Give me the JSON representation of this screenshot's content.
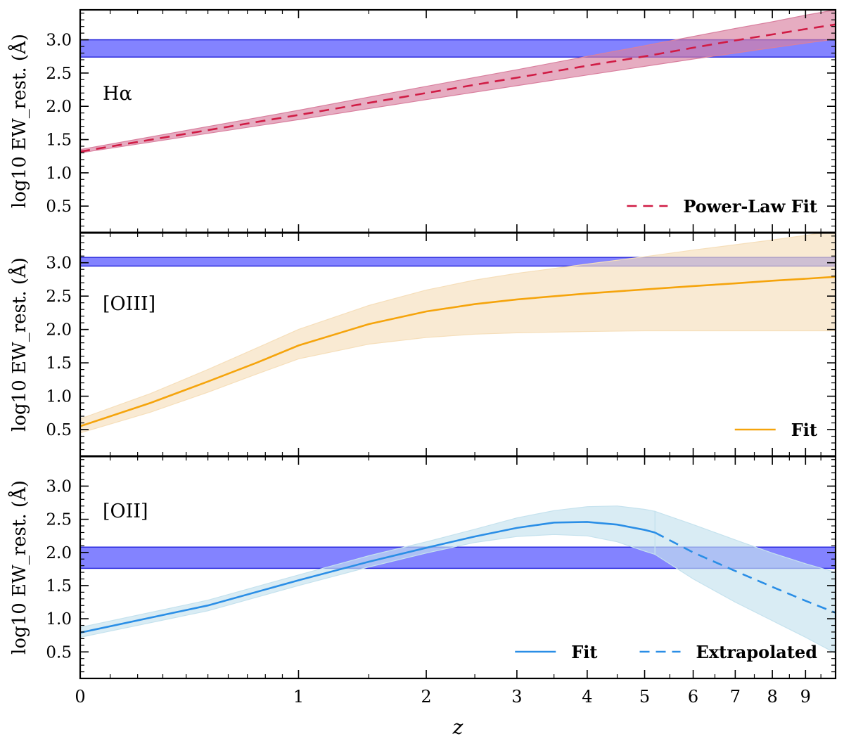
{
  "chart_data": {
    "type": "line",
    "shared_x": {
      "label": "z",
      "scale": "log(1+z)",
      "range": [
        0,
        10
      ],
      "ticks": [
        "0",
        "1",
        "2",
        "3",
        "4",
        "5",
        "6",
        "7",
        "8",
        "9"
      ],
      "tick_values": [
        0,
        1,
        2,
        3,
        4,
        5,
        6,
        7,
        8,
        9
      ]
    },
    "panels": [
      {
        "name": "halpha",
        "label": "Hα",
        "ylabel": "log10 EW_rest. (Å)",
        "ylim": [
          0.1,
          3.45
        ],
        "yticks": [
          "0.5",
          "1.0",
          "1.5",
          "2.0",
          "2.5",
          "3.0"
        ],
        "ytick_values": [
          0.5,
          1.0,
          1.5,
          2.0,
          2.5,
          3.0
        ],
        "observed_band": {
          "ymin": 2.74,
          "ymax": 3.0,
          "color": "#5a5aff"
        },
        "series": [
          {
            "name": "Power-Law Fit",
            "style": "dashed",
            "color": "#d01c45",
            "band_color": "#d9809f",
            "x": [
              0,
              1,
              2,
              3,
              4,
              5,
              6,
              7,
              8,
              9,
              10
            ],
            "y": [
              1.32,
              1.87,
              2.2,
              2.43,
              2.61,
              2.75,
              2.88,
              2.99,
              3.08,
              3.16,
              3.23
            ],
            "y_low": [
              1.3,
              1.8,
              2.1,
              2.31,
              2.47,
              2.6,
              2.71,
              2.8,
              2.88,
              2.95,
              3.01
            ],
            "y_high": [
              1.35,
              1.94,
              2.3,
              2.55,
              2.75,
              2.91,
              3.05,
              3.17,
              3.27,
              3.37,
              3.45
            ]
          }
        ],
        "legend_position": "lower-right"
      },
      {
        "name": "oiii",
        "label": "[OIII]",
        "ylabel": "log10 EW_rest. (Å)",
        "ylim": [
          0.1,
          3.45
        ],
        "yticks": [
          "0.5",
          "1.0",
          "1.5",
          "2.0",
          "2.5",
          "3.0"
        ],
        "ytick_values": [
          0.5,
          1.0,
          1.5,
          2.0,
          2.5,
          3.0
        ],
        "observed_band": {
          "ymin": 2.95,
          "ymax": 3.08,
          "color": "#5a5aff"
        },
        "series": [
          {
            "name": "Fit",
            "style": "solid",
            "color": "#f5a40c",
            "band_color": "#f6dfbb",
            "x": [
              0,
              0.25,
              0.5,
              0.75,
              1,
              1.5,
              2,
              2.5,
              3,
              4,
              5,
              6,
              7,
              8,
              9,
              10
            ],
            "y": [
              0.55,
              0.9,
              1.22,
              1.5,
              1.76,
              2.08,
              2.27,
              2.38,
              2.45,
              2.54,
              2.6,
              2.65,
              2.69,
              2.73,
              2.76,
              2.79
            ],
            "y_low": [
              0.45,
              0.76,
              1.06,
              1.33,
              1.56,
              1.78,
              1.88,
              1.93,
              1.95,
              1.97,
              1.98,
              1.98,
              1.98,
              1.98,
              1.98,
              1.98
            ],
            "y_high": [
              0.66,
              1.04,
              1.4,
              1.72,
              2.0,
              2.36,
              2.59,
              2.74,
              2.84,
              2.98,
              3.09,
              3.19,
              3.27,
              3.34,
              3.41,
              3.47
            ]
          }
        ],
        "legend_position": "lower-right"
      },
      {
        "name": "oii",
        "label": "[OII]",
        "ylabel": "log10 EW_rest. (Å)",
        "ylim": [
          0.1,
          3.45
        ],
        "yticks": [
          "0.5",
          "1.0",
          "1.5",
          "2.0",
          "2.5",
          "3.0"
        ],
        "ytick_values": [
          0.5,
          1.0,
          1.5,
          2.0,
          2.5,
          3.0
        ],
        "observed_band": {
          "ymin": 1.76,
          "ymax": 2.08,
          "color": "#5a5aff"
        },
        "series": [
          {
            "name": "Fit",
            "style": "solid",
            "color": "#2a8ee6",
            "band_color": "#c5e2ee",
            "x": [
              0,
              0.5,
              1,
              1.5,
              2,
              2.5,
              3,
              3.5,
              4,
              4.5,
              5,
              5.2
            ],
            "y": [
              0.79,
              1.2,
              1.58,
              1.86,
              2.07,
              2.24,
              2.37,
              2.45,
              2.46,
              2.42,
              2.34,
              2.3
            ],
            "y_low": [
              0.72,
              1.12,
              1.5,
              1.78,
              1.99,
              2.15,
              2.24,
              2.27,
              2.25,
              2.16,
              2.02,
              1.97
            ],
            "y_high": [
              0.87,
              1.28,
              1.66,
              1.95,
              2.16,
              2.35,
              2.52,
              2.63,
              2.69,
              2.7,
              2.65,
              2.62
            ]
          },
          {
            "name": "Extrapolated",
            "style": "dashed",
            "color": "#2a8ee6",
            "band_color": "#c5e2ee",
            "x": [
              5.2,
              6,
              7,
              8,
              9,
              10
            ],
            "y": [
              2.3,
              2.0,
              1.72,
              1.48,
              1.27,
              1.09
            ],
            "y_low": [
              1.97,
              1.6,
              1.25,
              0.97,
              0.72,
              0.48
            ],
            "y_high": [
              2.62,
              2.42,
              2.19,
              1.99,
              1.83,
              1.7
            ]
          }
        ],
        "legend_position": "lower-right"
      }
    ]
  }
}
